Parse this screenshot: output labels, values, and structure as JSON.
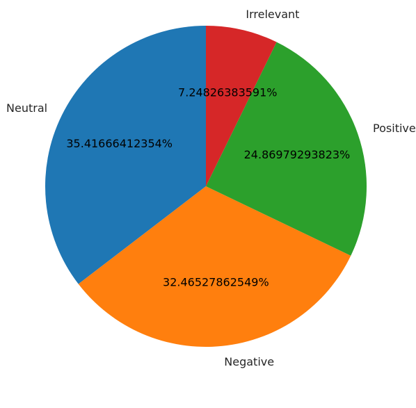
{
  "chart_data": {
    "type": "pie",
    "title": "",
    "start_angle_deg": 90,
    "direction": "counterclockwise",
    "slices": [
      {
        "label": "Neutral",
        "value": 35.41666412354,
        "pct_label": "35.41666412354%",
        "color": "#1f77b4"
      },
      {
        "label": "Negative",
        "value": 32.46527862549,
        "pct_label": "32.46527862549%",
        "color": "#ff7f0e"
      },
      {
        "label": "Positive",
        "value": 24.86979293823,
        "pct_label": "24.86979293823%",
        "color": "#2ca02c"
      },
      {
        "label": "Irrelevant",
        "value": 7.24826383591,
        "pct_label": "7.24826383591%",
        "color": "#d62728"
      }
    ]
  }
}
